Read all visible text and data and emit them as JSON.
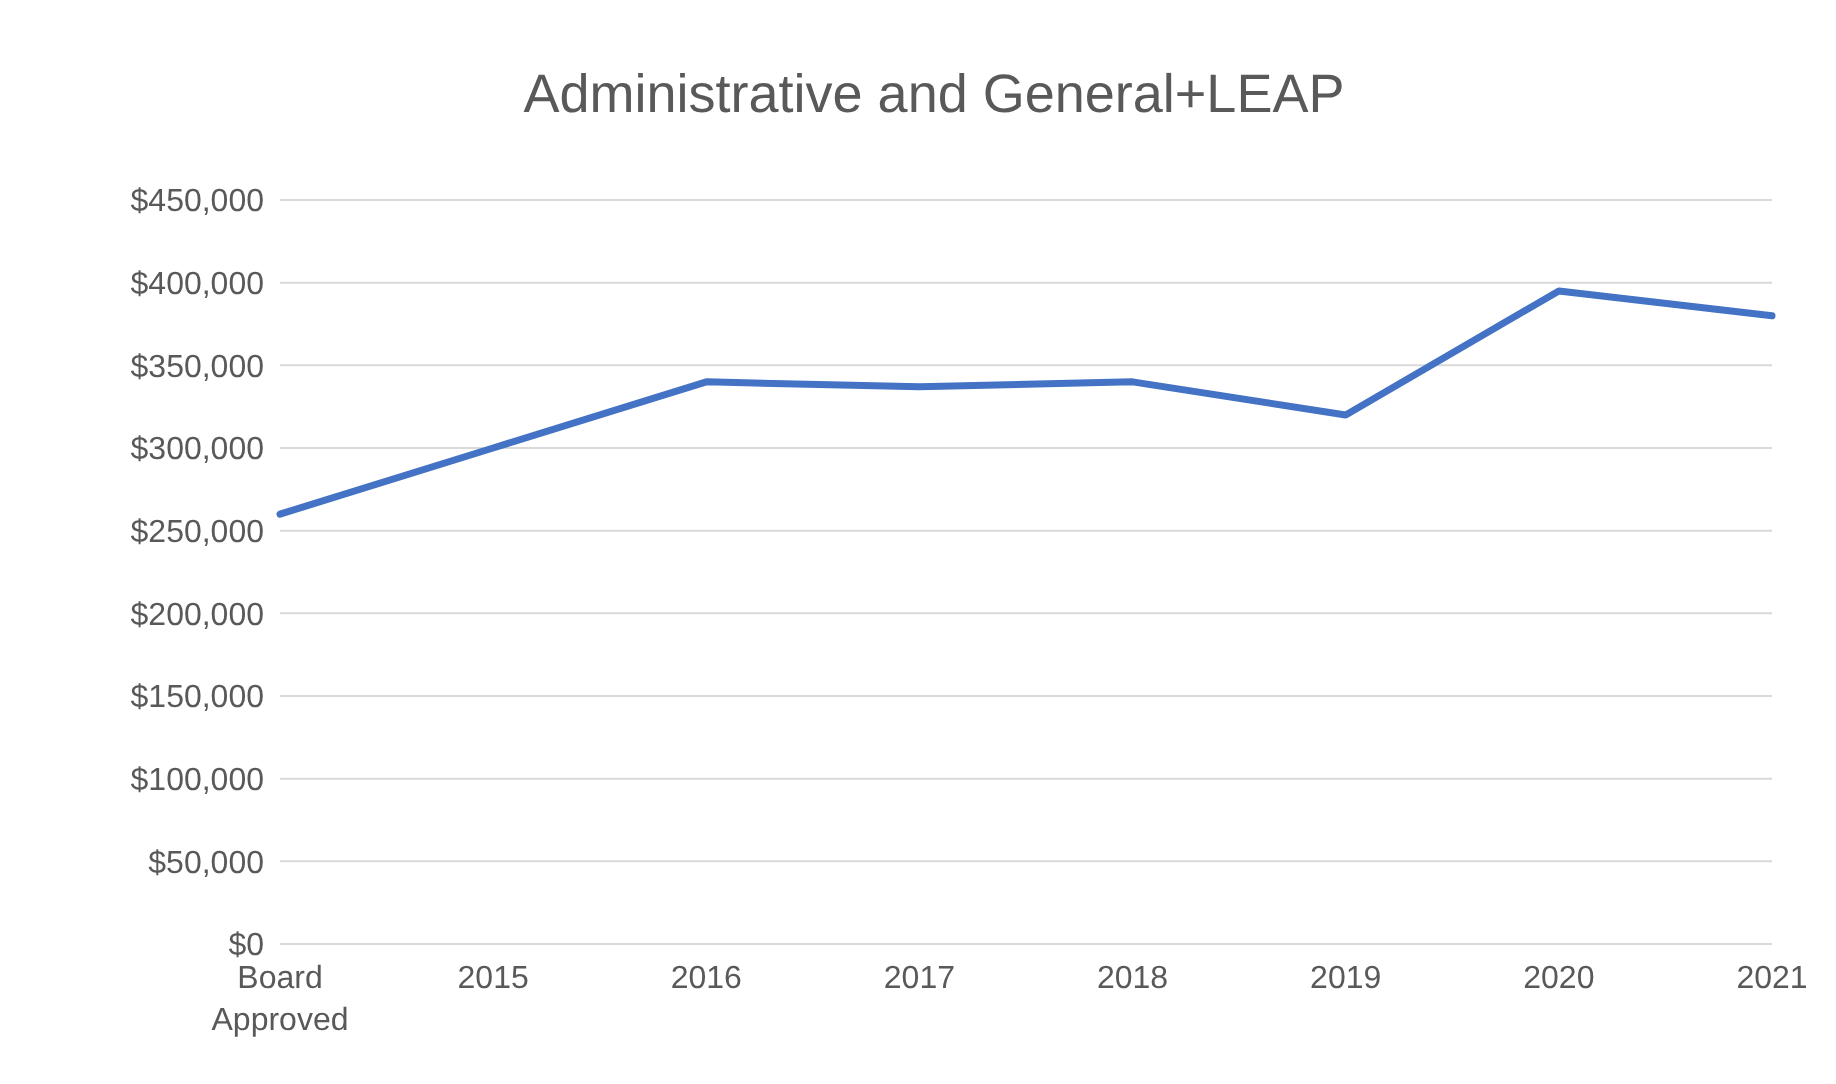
{
  "chart_data": {
    "type": "line",
    "title": "Administrative and General+LEAP",
    "categories": [
      "Board Approved",
      "2015",
      "2016",
      "2017",
      "2018",
      "2019",
      "2020",
      "2021"
    ],
    "series": [
      {
        "color": "#4472c4",
        "values": [
          260000,
          300000,
          340000,
          337000,
          340000,
          320000,
          395000,
          380000
        ]
      }
    ],
    "ylim": [
      0,
      450000
    ],
    "yticks": [
      {
        "value": 0,
        "label": "$0"
      },
      {
        "value": 50000,
        "label": "$50,000"
      },
      {
        "value": 100000,
        "label": "$100,000"
      },
      {
        "value": 150000,
        "label": "$150,000"
      },
      {
        "value": 200000,
        "label": "$200,000"
      },
      {
        "value": 250000,
        "label": "$250,000"
      },
      {
        "value": 300000,
        "label": "$300,000"
      },
      {
        "value": 350000,
        "label": "$350,000"
      },
      {
        "value": 400000,
        "label": "$400,000"
      },
      {
        "value": 450000,
        "label": "$450,000"
      }
    ],
    "grid": "y",
    "legend": false,
    "marker": "none",
    "line_style": "solid"
  }
}
